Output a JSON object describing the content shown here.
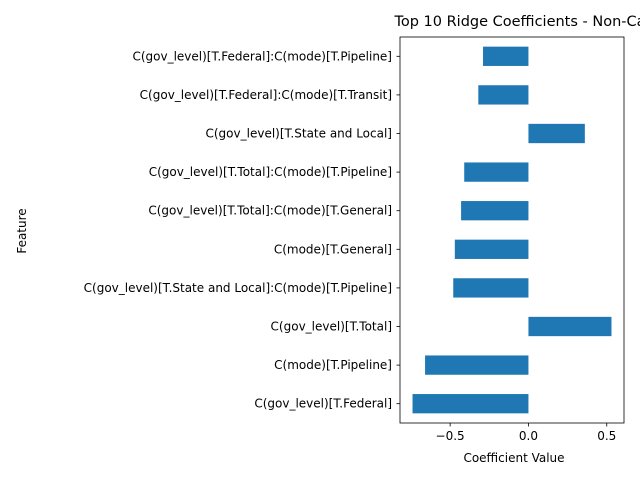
{
  "chart_data": {
    "type": "bar",
    "orientation": "horizontal",
    "title": "Top 10 Ridge Coefficients - Non-Ca",
    "xlabel": "Coefficient Value",
    "ylabel": "Feature",
    "categories": [
      "C(gov_level)[T.Federal]:C(mode)[T.Pipeline]",
      "C(gov_level)[T.Federal]:C(mode)[T.Transit]",
      "C(gov_level)[T.State and Local]",
      "C(gov_level)[T.Total]:C(mode)[T.Pipeline]",
      "C(gov_level)[T.Total]:C(mode)[T.General]",
      "C(mode)[T.General]",
      "C(gov_level)[T.State and Local]:C(mode)[T.Pipeline]",
      "C(gov_level)[T.Total]",
      "C(mode)[T.Pipeline]",
      "C(gov_level)[T.Federal]"
    ],
    "values": [
      -0.29,
      -0.32,
      0.36,
      -0.41,
      -0.43,
      -0.47,
      -0.48,
      0.53,
      -0.66,
      -0.74
    ],
    "xlim": [
      -0.82,
      0.61
    ],
    "xticks": [
      -0.5,
      0.0,
      0.5
    ],
    "xtick_labels": [
      "−0.5",
      "0.0",
      "0.5"
    ],
    "grid": false,
    "bar_color": "#1f77b4"
  }
}
